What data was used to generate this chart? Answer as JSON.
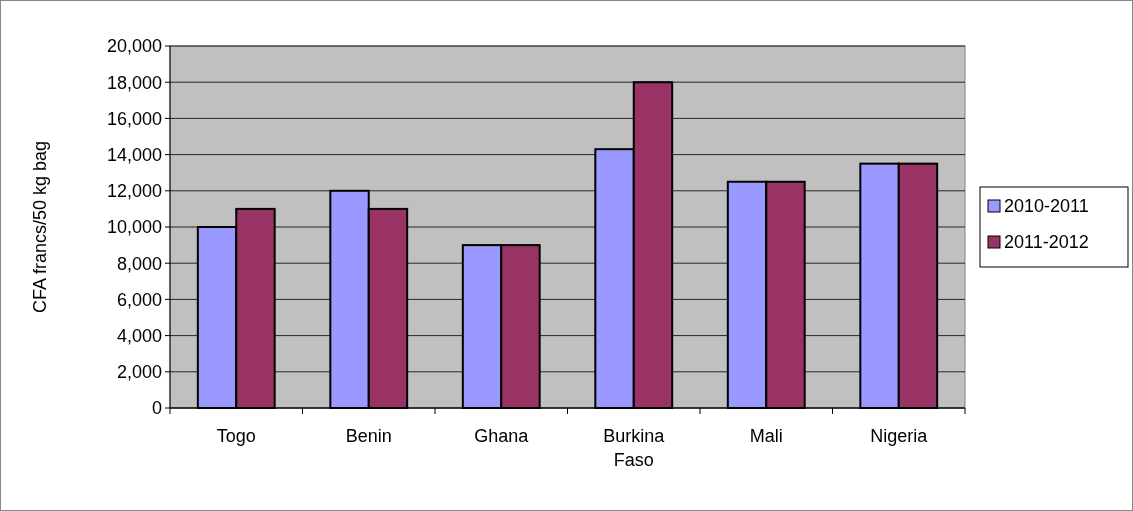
{
  "chart_data": {
    "type": "bar",
    "ylabel": "CFA francs/50 kg bag",
    "categories": [
      "Togo",
      "Benin",
      "Ghana",
      "Burkina Faso",
      "Mali",
      "Nigeria"
    ],
    "series": [
      {
        "name": "2010-2011",
        "color": "#9999ff",
        "values": [
          10000,
          12000,
          9000,
          14300,
          12500,
          13500
        ]
      },
      {
        "name": "2011-2012",
        "color": "#993366",
        "values": [
          11000,
          11000,
          9000,
          18000,
          12500,
          13500
        ]
      }
    ],
    "ylim": [
      0,
      20000
    ],
    "yticks": [
      {
        "value": 0,
        "label": "0"
      },
      {
        "value": 2000,
        "label": "2,000"
      },
      {
        "value": 4000,
        "label": "4,000"
      },
      {
        "value": 6000,
        "label": "6,000"
      },
      {
        "value": 8000,
        "label": "8,000"
      },
      {
        "value": 10000,
        "label": "10,000"
      },
      {
        "value": 12000,
        "label": "12,000"
      },
      {
        "value": 14000,
        "label": "14,000"
      },
      {
        "value": 16000,
        "label": "16,000"
      },
      {
        "value": 18000,
        "label": "18,000"
      },
      {
        "value": 20000,
        "label": "20,000"
      }
    ],
    "grid": "y",
    "legend": "right"
  }
}
